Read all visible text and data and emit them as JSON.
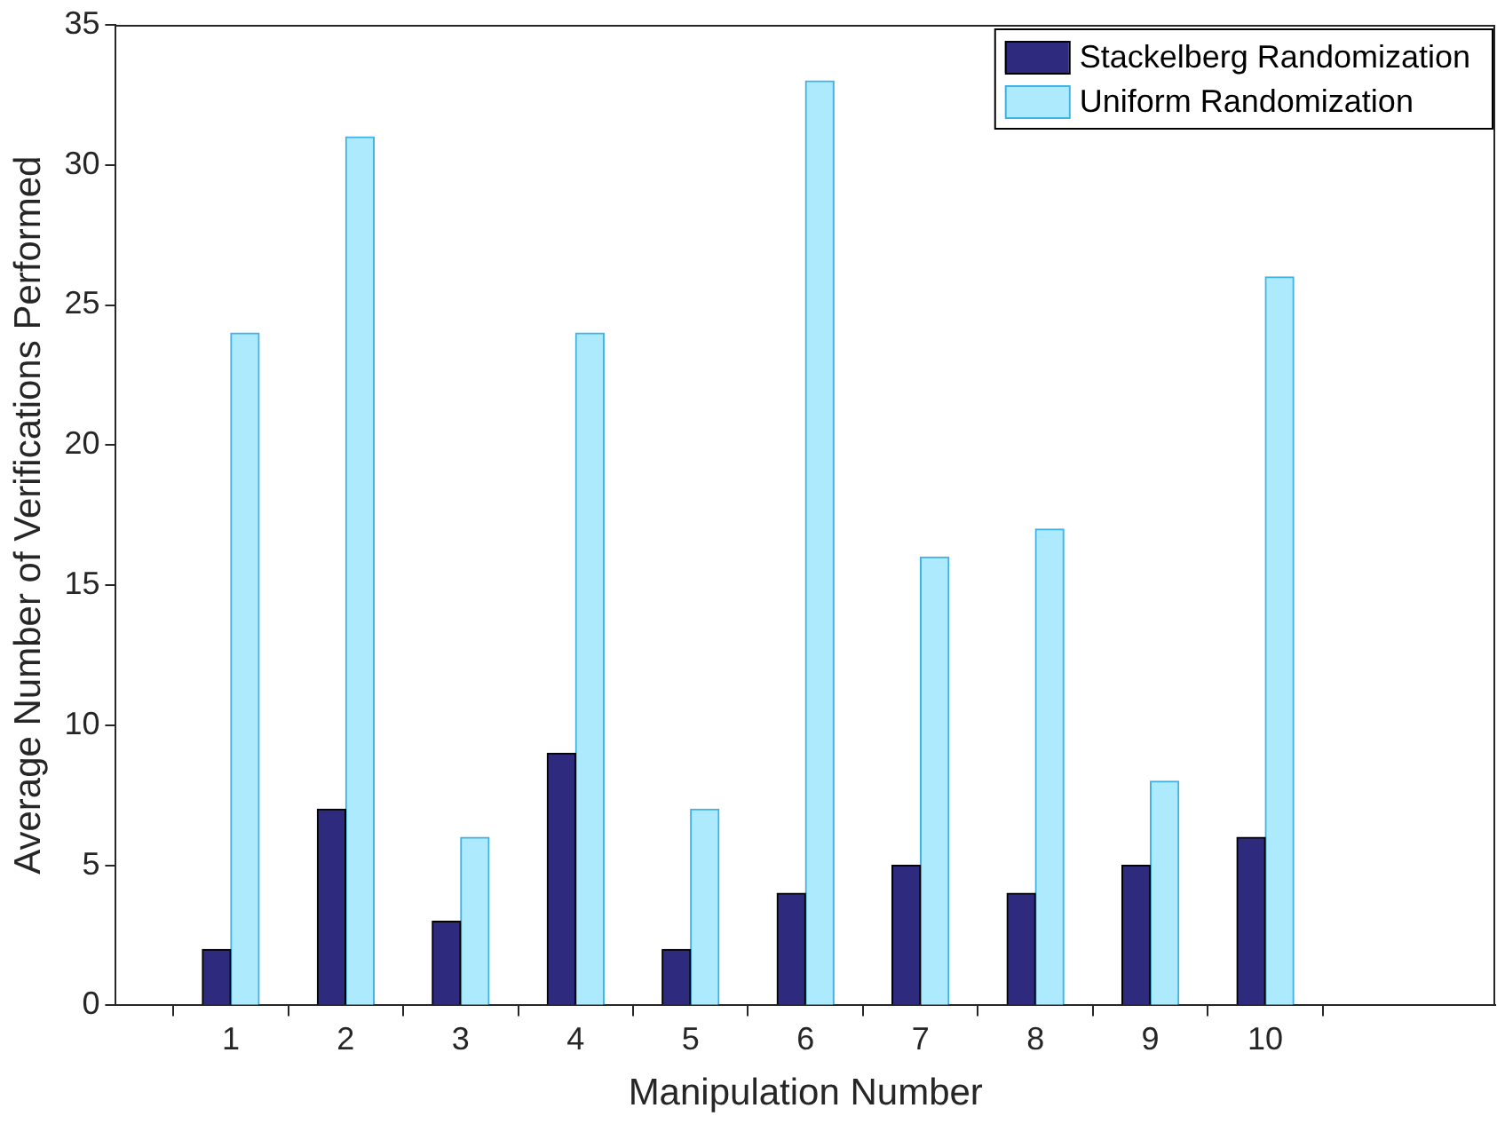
{
  "chart_data": {
    "type": "bar",
    "xlabel": "Manipulation Number",
    "ylabel": "Average Number of Verifications Performed",
    "x": [
      1,
      2,
      3,
      4,
      5,
      6,
      7,
      8,
      9,
      10
    ],
    "series": [
      {
        "name": "Stackelberg Randomization",
        "color": "#2e2b7f",
        "values": [
          2,
          7,
          3,
          9,
          2,
          4,
          5,
          4,
          5,
          6
        ]
      },
      {
        "name": "Uniform Randomization",
        "color": "#aeeafd",
        "values": [
          24,
          31,
          6,
          24,
          7,
          33,
          16,
          17,
          8,
          26
        ]
      }
    ],
    "xlim": [
      0,
      12
    ],
    "xticks": [
      1,
      2,
      3,
      4,
      5,
      6,
      7,
      8,
      9,
      10
    ],
    "ylim": [
      0,
      35
    ],
    "yticks": [
      0,
      5,
      10,
      15,
      20,
      25,
      30,
      35
    ],
    "grid": false,
    "legend": "top right"
  }
}
